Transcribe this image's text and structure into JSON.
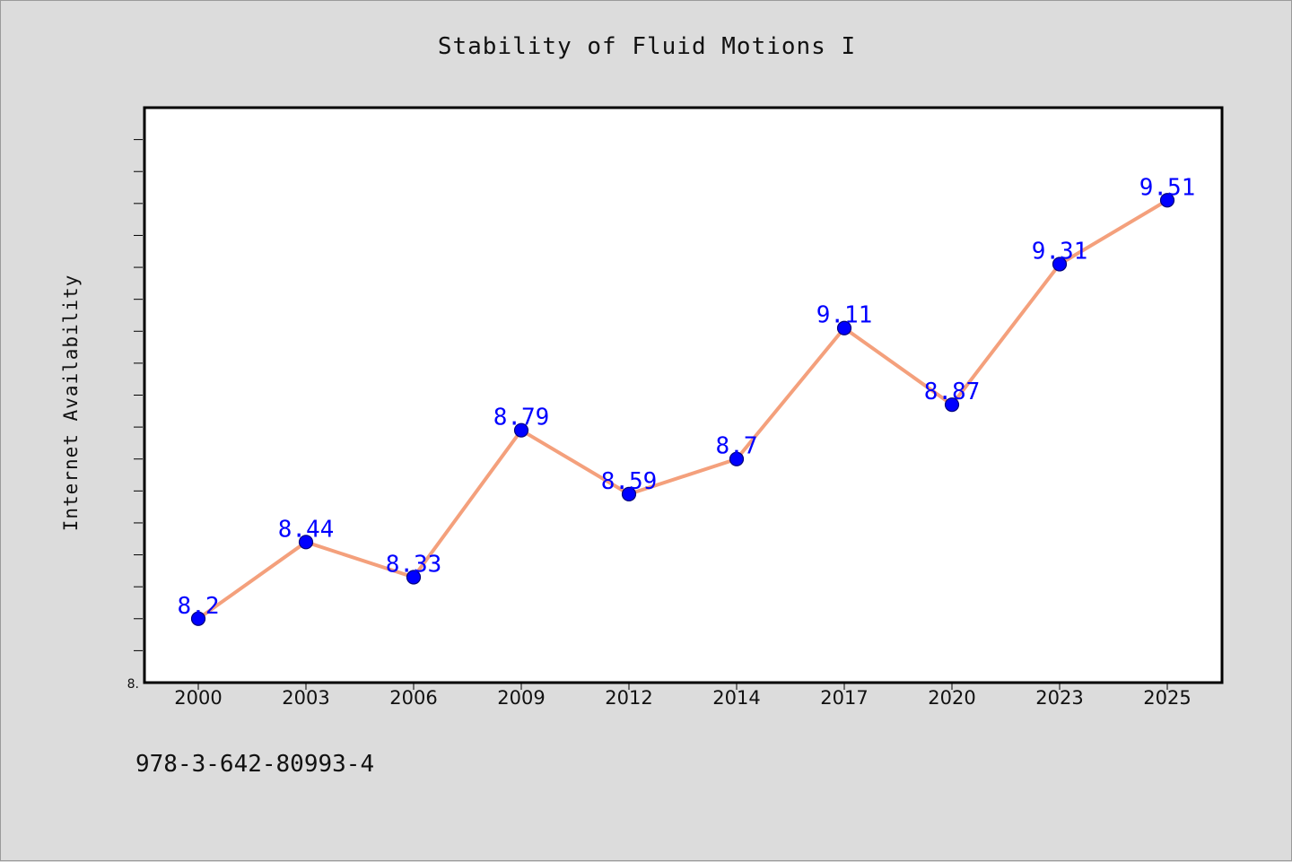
{
  "title": "Stability of Fluid Motions I",
  "footer_code": "978-3-642-80993-4",
  "colors": {
    "background": "#dcdcdc",
    "plot_background": "#ffffff",
    "line": "#f4a07c",
    "marker": "#0000ff",
    "data_label": "#0000ff"
  },
  "chart_data": {
    "type": "line",
    "title": "Stability of Fluid Motions I",
    "xlabel": "",
    "ylabel": "Internet Availability",
    "categories": [
      "2000",
      "2003",
      "2006",
      "2009",
      "2012",
      "2014",
      "2017",
      "2020",
      "2023",
      "2025"
    ],
    "series": [
      {
        "values": [
          8.2,
          8.44,
          8.33,
          8.79,
          8.59,
          8.7,
          9.11,
          8.87,
          9.31,
          9.51
        ],
        "labels": [
          "8.2",
          "8.44",
          "8.33",
          "8.79",
          "8.59",
          "8.7",
          "9.11",
          "8.87",
          "9.31",
          "9.51"
        ]
      }
    ],
    "ylim": [
      8.0,
      9.8
    ],
    "y_tick_label": "8.",
    "grid": false,
    "legend": "none"
  }
}
